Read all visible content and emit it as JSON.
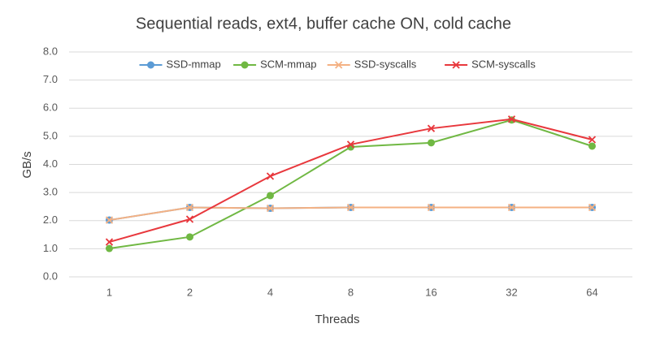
{
  "chart_data": {
    "type": "line",
    "title": "Sequential reads, ext4, buffer cache ON, cold cache",
    "x_label": "Threads",
    "y_label": "GB/s",
    "categories": [
      "1",
      "2",
      "4",
      "8",
      "16",
      "32",
      "64"
    ],
    "series": [
      {
        "name": "SSD-mmap",
        "color": "#5b9bd5",
        "marker": "circle",
        "values": [
          2.02,
          2.47,
          2.44,
          2.47,
          2.47,
          2.47,
          2.47
        ]
      },
      {
        "name": "SCM-mmap",
        "color": "#70b843",
        "marker": "circle",
        "values": [
          1.01,
          1.42,
          2.89,
          4.62,
          4.77,
          5.58,
          4.65
        ]
      },
      {
        "name": "SSD-syscalls",
        "color": "#f4b183",
        "marker": "x",
        "values": [
          2.02,
          2.47,
          2.44,
          2.47,
          2.47,
          2.47,
          2.47
        ]
      },
      {
        "name": "SCM-syscalls",
        "color": "#e8383d",
        "marker": "x",
        "values": [
          1.24,
          2.05,
          3.58,
          4.71,
          5.28,
          5.61,
          4.88
        ]
      }
    ],
    "ylim": [
      0,
      8
    ],
    "yticks": [
      {
        "value": 0,
        "label": "0.0"
      },
      {
        "value": 1,
        "label": "1.0"
      },
      {
        "value": 2,
        "label": "2.0"
      },
      {
        "value": 3,
        "label": "3.0"
      },
      {
        "value": 4,
        "label": "4.0"
      },
      {
        "value": 5,
        "label": "5.0"
      },
      {
        "value": 6,
        "label": "6.0"
      },
      {
        "value": 7,
        "label": "7.0"
      },
      {
        "value": 8,
        "label": "8.0"
      }
    ],
    "grid": true,
    "legend": "top"
  }
}
